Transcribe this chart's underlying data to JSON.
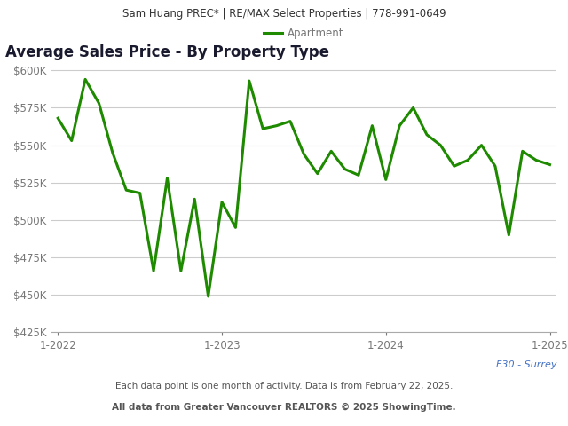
{
  "header_text": "Sam Huang PREC* | RE/MAX Select Properties | 778-991-0649",
  "title": "Average Sales Price - By Property Type",
  "legend_label": "Apartment",
  "footer_note": "Each data point is one month of activity. Data is from February 22, 2025.",
  "footer_source": "All data from Greater Vancouver REALTORS © 2025 ShowingTime.",
  "watermark": "F30 - Surrey",
  "line_color": "#1e8a00",
  "header_bg_color": "#e8e8e8",
  "plot_bg_color": "#ffffff",
  "fig_bg_color": "#ffffff",
  "title_color": "#1a1a2e",
  "tick_color": "#777777",
  "grid_color": "#cccccc",
  "footer_color": "#555555",
  "watermark_color": "#4472c4",
  "header_text_color": "#333333",
  "ylim": [
    425000,
    610000
  ],
  "ytick_step": 25000,
  "values": [
    568000,
    553000,
    594000,
    578000,
    545000,
    520000,
    518000,
    466000,
    528000,
    466000,
    514000,
    449000,
    512000,
    495000,
    593000,
    561000,
    563000,
    566000,
    544000,
    531000,
    546000,
    534000,
    530000,
    563000,
    527000,
    563000,
    575000,
    557000,
    550000,
    536000,
    540000,
    550000,
    536000,
    490000,
    546000,
    540000,
    537000
  ],
  "xtick_positions": [
    0,
    12,
    24,
    36
  ],
  "xtick_labels": [
    "1-2022",
    "1-2023",
    "1-2024",
    "1-2025"
  ]
}
